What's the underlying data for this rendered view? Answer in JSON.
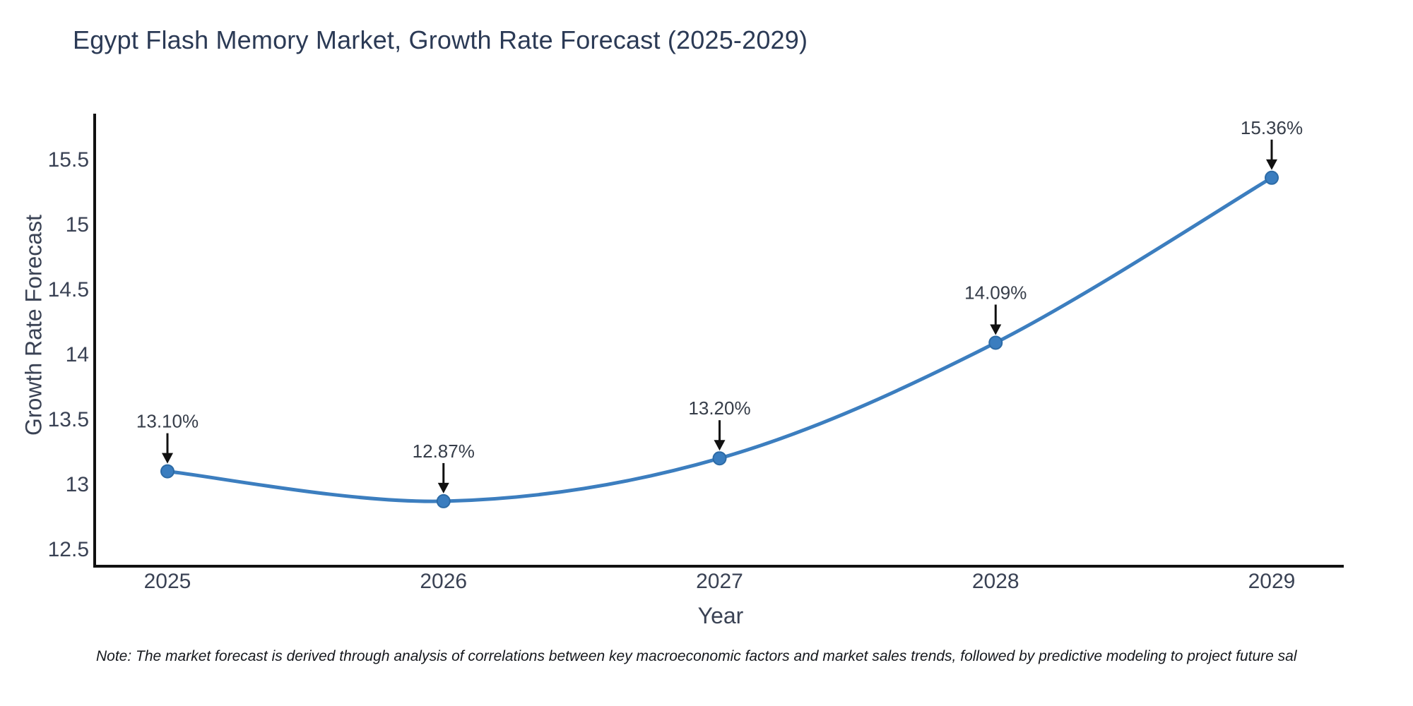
{
  "note": "Note: The market forecast is derived through analysis of correlations between key macroeconomic factors and market sales trends, followed by predictive modeling to project future sal",
  "colors": {
    "line": "#3c7ebf",
    "marker_fill": "#3a7dbf",
    "marker_edge": "#2d6ba6",
    "axis": "#111111",
    "title_text": "#2b3a55"
  },
  "chart_data": {
    "type": "line",
    "title": "Egypt Flash Memory Market, Growth Rate Forecast (2025-2029)",
    "xlabel": "Year",
    "ylabel": "Growth Rate Forecast",
    "x": [
      2025,
      2026,
      2027,
      2028,
      2029
    ],
    "x_tick_labels": [
      "2025",
      "2026",
      "2027",
      "2028",
      "2029"
    ],
    "values": [
      13.1,
      12.87,
      13.2,
      14.09,
      15.36
    ],
    "point_labels": [
      "13.10%",
      "12.87%",
      "13.20%",
      "14.09%",
      "15.36%"
    ],
    "ytick_values": [
      12.5,
      13,
      13.5,
      14,
      14.5,
      15,
      15.5
    ],
    "ytick_labels": [
      "12.5",
      "13",
      "13.5",
      "14",
      "14.5",
      "15",
      "15.5"
    ],
    "ylim": [
      12.37,
      15.85
    ],
    "grid": false,
    "legend": "none",
    "line_style": "smooth-spline",
    "annotation_style": "value-above-with-down-arrow"
  }
}
